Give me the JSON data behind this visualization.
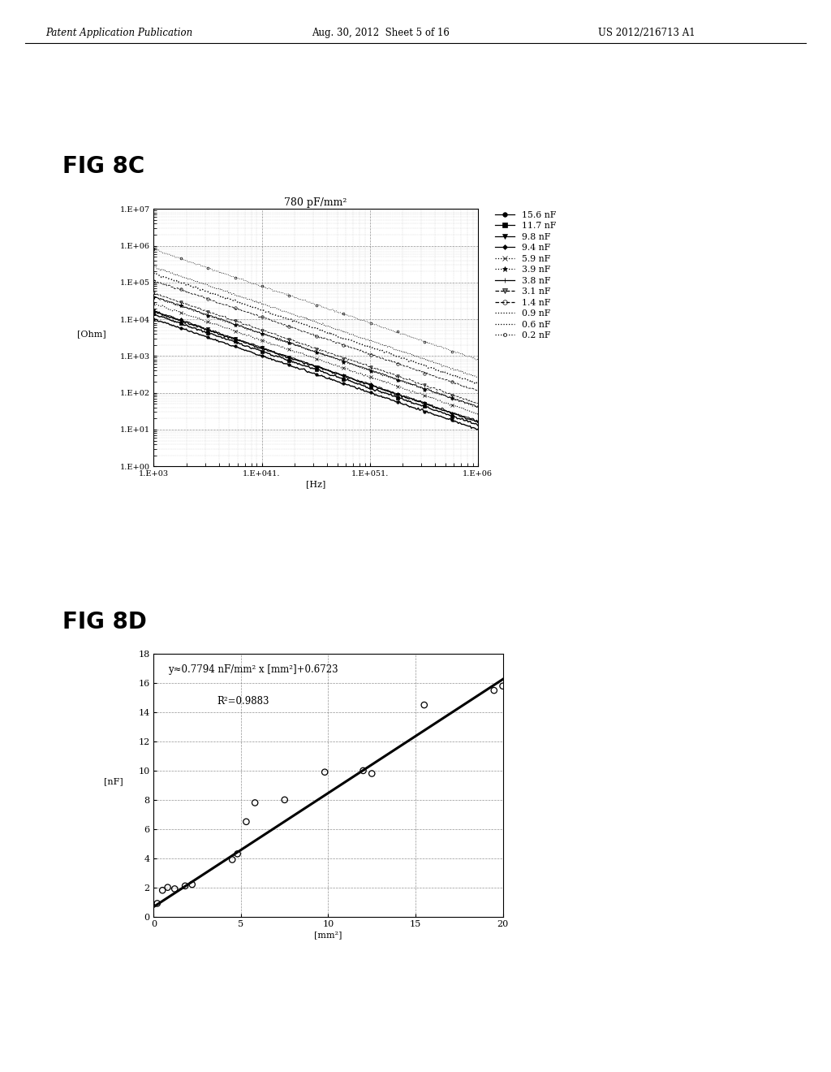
{
  "header_left": "Patent Application Publication",
  "header_mid": "Aug. 30, 2012  Sheet 5 of 16",
  "header_right": "US 2012/216713 A1",
  "fig8c_label": "FIG 8C",
  "fig8d_label": "FIG 8D",
  "fig8c_title": "780 pF/mm²",
  "fig8c_xlabel": "[Hz]",
  "fig8c_ylabel": "[Ohm]",
  "legend_labels": [
    "15.6 nF",
    "11.7 nF",
    "9.8 nF",
    "9.4 nF",
    "5.9 nF",
    "3.9 nF",
    "3.8 nF",
    "3.1 nF",
    "1.4 nF",
    "0.9 nF",
    "0.6 nF",
    "0.2 nF"
  ],
  "capacitances_nF": [
    15.6,
    11.7,
    9.8,
    9.4,
    5.9,
    3.9,
    3.8,
    3.1,
    1.4,
    0.9,
    0.6,
    0.2
  ],
  "fig8d_xlabel": "[mm²]",
  "fig8d_ylabel": "[nF]",
  "fig8d_xlim": [
    0,
    20
  ],
  "fig8d_ylim": [
    0,
    18
  ],
  "fig8d_xticks": [
    0,
    5,
    10,
    15,
    20
  ],
  "fig8d_yticks": [
    0,
    2,
    4,
    6,
    8,
    10,
    12,
    14,
    16,
    18
  ],
  "fig8d_equation_line1": "y≈0.7794 nF/mm² x [mm²]+0.6723",
  "fig8d_r2": "R²=0.9883",
  "fig8d_slope": 0.7794,
  "fig8d_intercept": 0.6723,
  "fig8d_scatter_x": [
    0.2,
    0.5,
    0.8,
    1.2,
    1.8,
    2.2,
    4.5,
    4.8,
    5.3,
    5.8,
    7.5,
    9.8,
    12.0,
    12.5,
    15.5,
    19.5,
    20.0
  ],
  "fig8d_scatter_y": [
    0.9,
    1.8,
    2.0,
    1.9,
    2.1,
    2.2,
    3.9,
    4.3,
    6.5,
    7.8,
    8.0,
    9.9,
    10.0,
    9.8,
    14.5,
    15.5,
    15.8
  ],
  "background_color": "#ffffff",
  "text_color": "#000000",
  "grid_color_major": "#666666",
  "grid_color_minor": "#aaaaaa"
}
